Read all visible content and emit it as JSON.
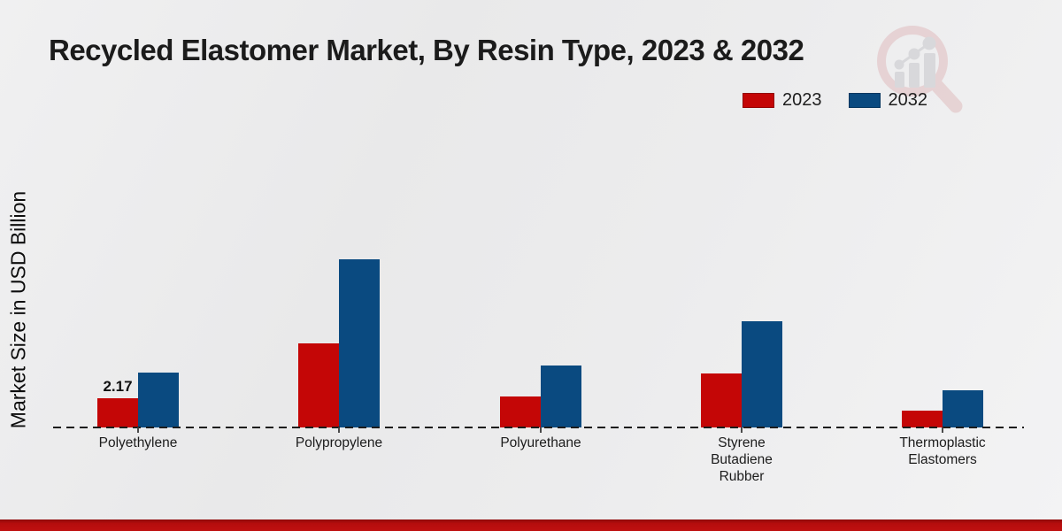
{
  "header": {
    "title": "Recycled Elastomer Market, By Resin Type, 2023 & 2032"
  },
  "axis": {
    "y_label": "Market Size in USD Billion"
  },
  "legend": {
    "items": [
      {
        "label": "2023",
        "color": "#c40606"
      },
      {
        "label": "2032",
        "color": "#0a4a80"
      }
    ]
  },
  "watermark": {
    "icon": "magnifier-bar-chart-logo"
  },
  "colors": {
    "series_2023": "#c40606",
    "series_2032": "#0a4a80",
    "footer_band": "#b50d0d",
    "baseline": "#1c1c1c",
    "background": "#ececed"
  },
  "chart_data": {
    "type": "bar",
    "title": "Recycled Elastomer Market, By Resin Type, 2023 & 2032",
    "xlabel": "",
    "ylabel": "Market Size in USD Billion",
    "categories": [
      "Polyethylene",
      "Polypropylene",
      "Polyurethane",
      "Styrene Butadiene Rubber",
      "Thermoplastic Elastomers"
    ],
    "series": [
      {
        "name": "2023",
        "color": "#c40606",
        "values": [
          2.17,
          6.25,
          2.3,
          4.0,
          1.25
        ]
      },
      {
        "name": "2032",
        "color": "#0a4a80",
        "values": [
          4.1,
          12.5,
          4.6,
          7.9,
          2.75
        ]
      }
    ],
    "data_labels": [
      {
        "series": "2023",
        "category": "Polyethylene",
        "text": "2.17"
      }
    ],
    "ylim": [
      0,
      14
    ],
    "grid": false,
    "legend_position": "top-right",
    "baseline_style": "dashed"
  }
}
